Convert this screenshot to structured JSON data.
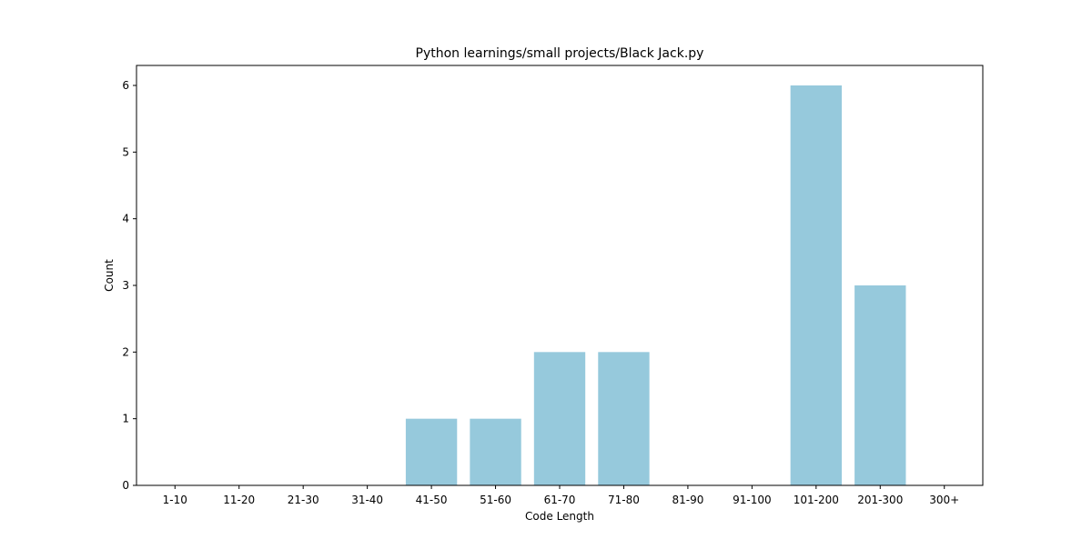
{
  "chart_data": {
    "type": "bar",
    "title": "Python learnings/small projects/Black Jack.py",
    "xlabel": "Code Length",
    "ylabel": "Count",
    "categories": [
      "1-10",
      "11-20",
      "21-30",
      "31-40",
      "41-50",
      "51-60",
      "61-70",
      "71-80",
      "81-90",
      "91-100",
      "101-200",
      "201-300",
      "300+"
    ],
    "values": [
      0,
      0,
      0,
      0,
      1,
      1,
      2,
      2,
      0,
      0,
      6,
      3,
      0
    ],
    "ylim": [
      0,
      6.3
    ],
    "yticks": [
      0,
      1,
      2,
      3,
      4,
      5,
      6
    ],
    "bar_color": "#96c9dc",
    "grid": false,
    "legend": "none"
  }
}
